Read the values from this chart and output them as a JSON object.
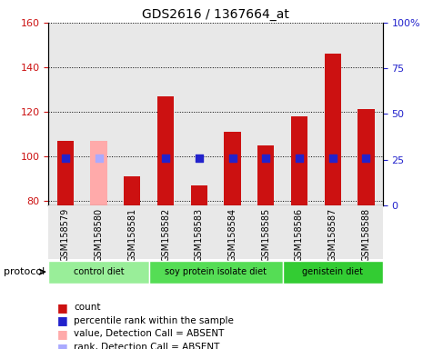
{
  "title": "GDS2616 / 1367664_at",
  "samples": [
    "GSM158579",
    "GSM158580",
    "GSM158581",
    "GSM158582",
    "GSM158583",
    "GSM158584",
    "GSM158585",
    "GSM158586",
    "GSM158587",
    "GSM158588"
  ],
  "count_values": [
    107,
    null,
    91,
    127,
    87,
    111,
    105,
    118,
    146,
    121
  ],
  "count_absent_values": [
    null,
    107,
    null,
    null,
    null,
    null,
    null,
    null,
    null,
    null
  ],
  "rank_values": [
    26,
    null,
    null,
    26,
    26,
    26,
    26,
    26,
    26,
    26
  ],
  "rank_absent_values": [
    null,
    26,
    null,
    null,
    null,
    null,
    null,
    null,
    null,
    null
  ],
  "ylim_left": [
    78,
    160
  ],
  "ylim_right": [
    0,
    100
  ],
  "yticks_left": [
    80,
    100,
    120,
    140,
    160
  ],
  "yticks_right": [
    0,
    25,
    50,
    75,
    100
  ],
  "ytick_labels_right": [
    "0",
    "25",
    "50",
    "75",
    "100%"
  ],
  "bar_color": "#cc1111",
  "bar_absent_color": "#ffaaaa",
  "rank_color": "#2222cc",
  "rank_absent_color": "#aaaaff",
  "protocol_groups": [
    {
      "label": "control diet",
      "start": 0,
      "end": 2,
      "color": "#99ee99"
    },
    {
      "label": "soy protein isolate diet",
      "start": 3,
      "end": 6,
      "color": "#55dd55"
    },
    {
      "label": "genistein diet",
      "start": 7,
      "end": 9,
      "color": "#33cc33"
    }
  ],
  "legend_items": [
    {
      "label": "count",
      "color": "#cc1111"
    },
    {
      "label": "percentile rank within the sample",
      "color": "#2222cc"
    },
    {
      "label": "value, Detection Call = ABSENT",
      "color": "#ffaaaa"
    },
    {
      "label": "rank, Detection Call = ABSENT",
      "color": "#aaaaff"
    }
  ],
  "bar_width": 0.5,
  "rank_marker_size": 30,
  "ylabel_left_color": "#cc1111",
  "ylabel_right_color": "#2222cc",
  "plot_area_color": "#e8e8e8"
}
